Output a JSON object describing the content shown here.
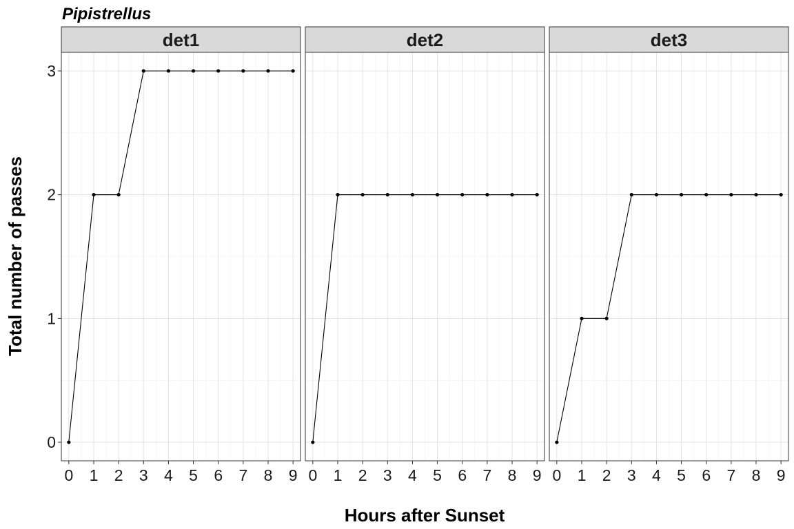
{
  "chart_data": {
    "type": "line",
    "title": "Pipistrellus",
    "xlabel": "Hours after Sunset",
    "ylabel": "Total number of passes",
    "x": [
      0,
      1,
      2,
      3,
      4,
      5,
      6,
      7,
      8,
      9
    ],
    "xlim": [
      -0.3,
      9.3
    ],
    "ylim": [
      -0.15,
      3.15
    ],
    "y_ticks": [
      0,
      1,
      2,
      3
    ],
    "grid": true,
    "panels": [
      {
        "label": "det1",
        "values": [
          0,
          2,
          2,
          3,
          3,
          3,
          3,
          3,
          3,
          3
        ]
      },
      {
        "label": "det2",
        "values": [
          0,
          2,
          2,
          2,
          2,
          2,
          2,
          2,
          2,
          2
        ]
      },
      {
        "label": "det3",
        "values": [
          0,
          1,
          1,
          2,
          2,
          2,
          2,
          2,
          2,
          2
        ]
      }
    ]
  }
}
